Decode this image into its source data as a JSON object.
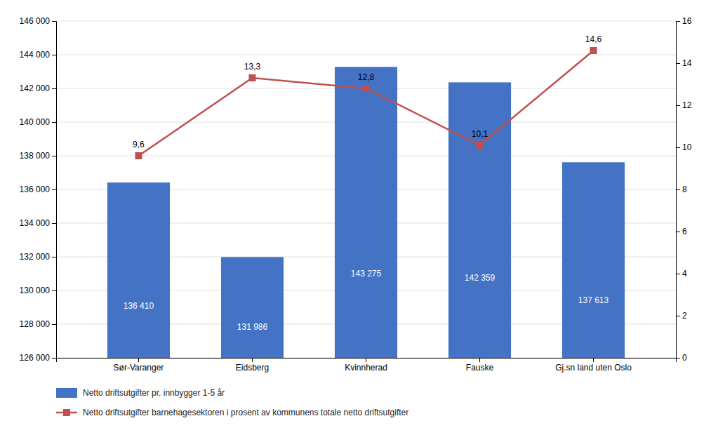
{
  "chart_data": {
    "type": "bar",
    "categories": [
      "Sør-Varanger",
      "Eidsberg",
      "Kvinnherad",
      "Fauske",
      "Gj.sn land uten Oslo"
    ],
    "series": [
      {
        "name": "Netto driftsutgifter pr. innbygger 1-5 år",
        "type": "bar",
        "color": "#4472C4",
        "values": [
          136410,
          131986,
          143275,
          142359,
          137613
        ],
        "value_labels": [
          "136 410",
          "131 986",
          "143 275",
          "142 359",
          "137 613"
        ]
      },
      {
        "name": "Netto driftsutgifter barnehagesektoren i prosent av kommunens totale netto driftsutgifter",
        "type": "line",
        "color": "#C0504D",
        "marker": "square",
        "axis": "y2",
        "values": [
          9.6,
          13.3,
          12.8,
          10.1,
          14.6
        ],
        "value_labels": [
          "9,6",
          "13,3",
          "12,8",
          "10,1",
          "14,6"
        ]
      }
    ],
    "ylim": [
      126000,
      146000
    ],
    "yticks": [
      {
        "value": 126000,
        "label": "126 000"
      },
      {
        "value": 128000,
        "label": "128 000"
      },
      {
        "value": 130000,
        "label": "130 000"
      },
      {
        "value": 132000,
        "label": "132 000"
      },
      {
        "value": 134000,
        "label": "134 000"
      },
      {
        "value": 136000,
        "label": "136 000"
      },
      {
        "value": 138000,
        "label": "138 000"
      },
      {
        "value": 140000,
        "label": "140 000"
      },
      {
        "value": 142000,
        "label": "142 000"
      },
      {
        "value": 144000,
        "label": "144 000"
      },
      {
        "value": 146000,
        "label": "146 000"
      }
    ],
    "y2lim": [
      0,
      16
    ],
    "y2ticks": [
      0,
      2,
      4,
      6,
      8,
      10,
      12,
      14,
      16
    ],
    "grid": true,
    "data_labels": true,
    "legend": "bottom"
  }
}
